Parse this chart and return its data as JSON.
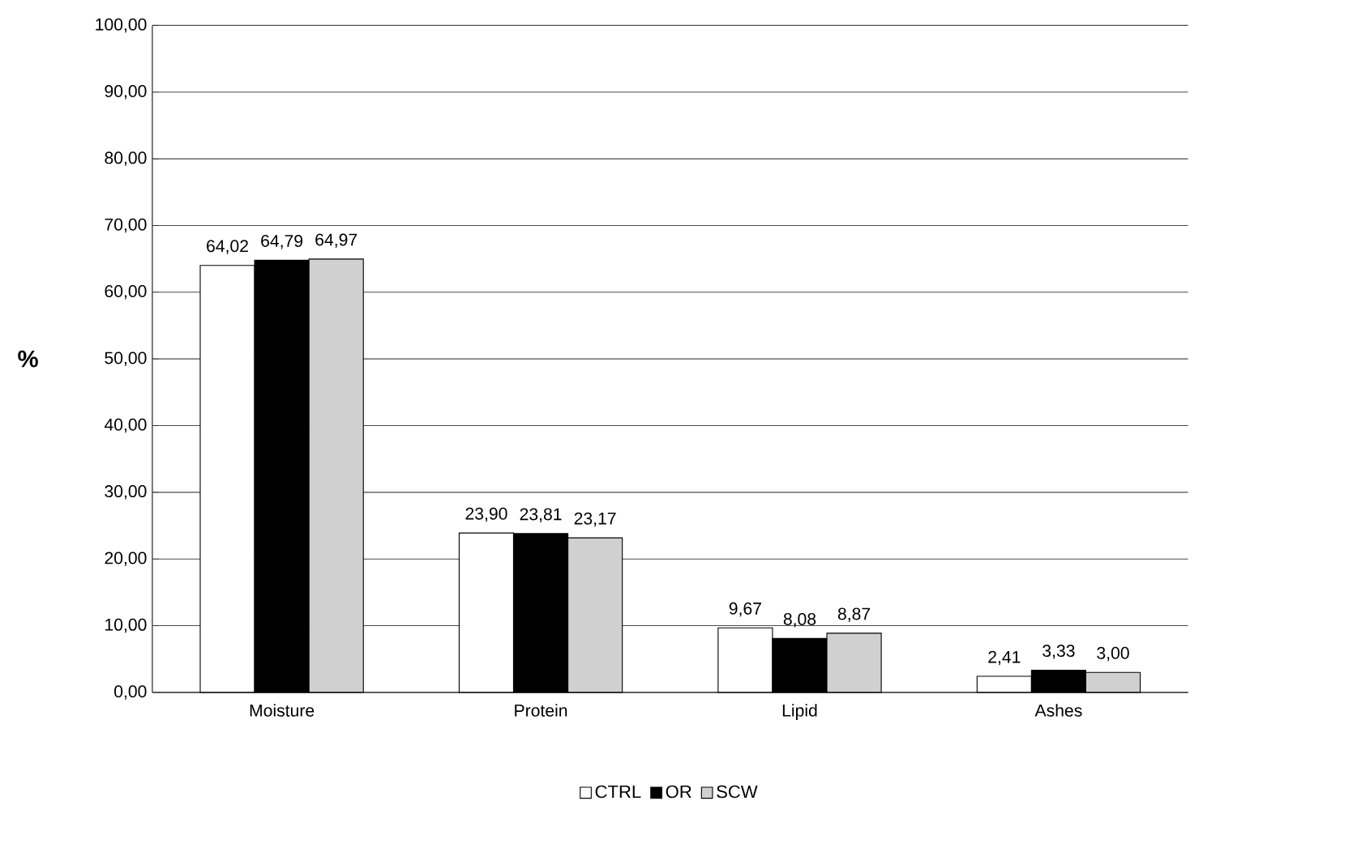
{
  "chart_data": {
    "type": "bar",
    "ylabel": "%",
    "categories": [
      "Moisture",
      "Protein",
      "Lipid",
      "Ashes"
    ],
    "series": [
      {
        "name": "CTRL",
        "color": "#ffffff",
        "values": [
          64.02,
          23.9,
          9.67,
          2.41
        ],
        "value_labels": [
          "64,02",
          "23,90",
          "9,67",
          "2,41"
        ]
      },
      {
        "name": "OR",
        "color": "#000000",
        "values": [
          64.79,
          23.81,
          8.08,
          3.33
        ],
        "value_labels": [
          "64,79",
          "23,81",
          "8,08",
          "3,33"
        ]
      },
      {
        "name": "SCW",
        "color": "#d0d0d0",
        "values": [
          64.97,
          23.17,
          8.87,
          3.0
        ],
        "value_labels": [
          "64,97",
          "23,17",
          "8,87",
          "3,00"
        ]
      }
    ],
    "ylim": [
      0,
      100
    ],
    "yticks": [
      {
        "value": 0,
        "label": "0,00"
      },
      {
        "value": 10,
        "label": "10,00"
      },
      {
        "value": 20,
        "label": "20,00"
      },
      {
        "value": 30,
        "label": "30,00"
      },
      {
        "value": 40,
        "label": "40,00"
      },
      {
        "value": 50,
        "label": "50,00"
      },
      {
        "value": 60,
        "label": "60,00"
      },
      {
        "value": 70,
        "label": "70,00"
      },
      {
        "value": 80,
        "label": "80,00"
      },
      {
        "value": 90,
        "label": "90,00"
      },
      {
        "value": 100,
        "label": "100,00"
      }
    ],
    "grid": "y",
    "legend": "bottom"
  }
}
